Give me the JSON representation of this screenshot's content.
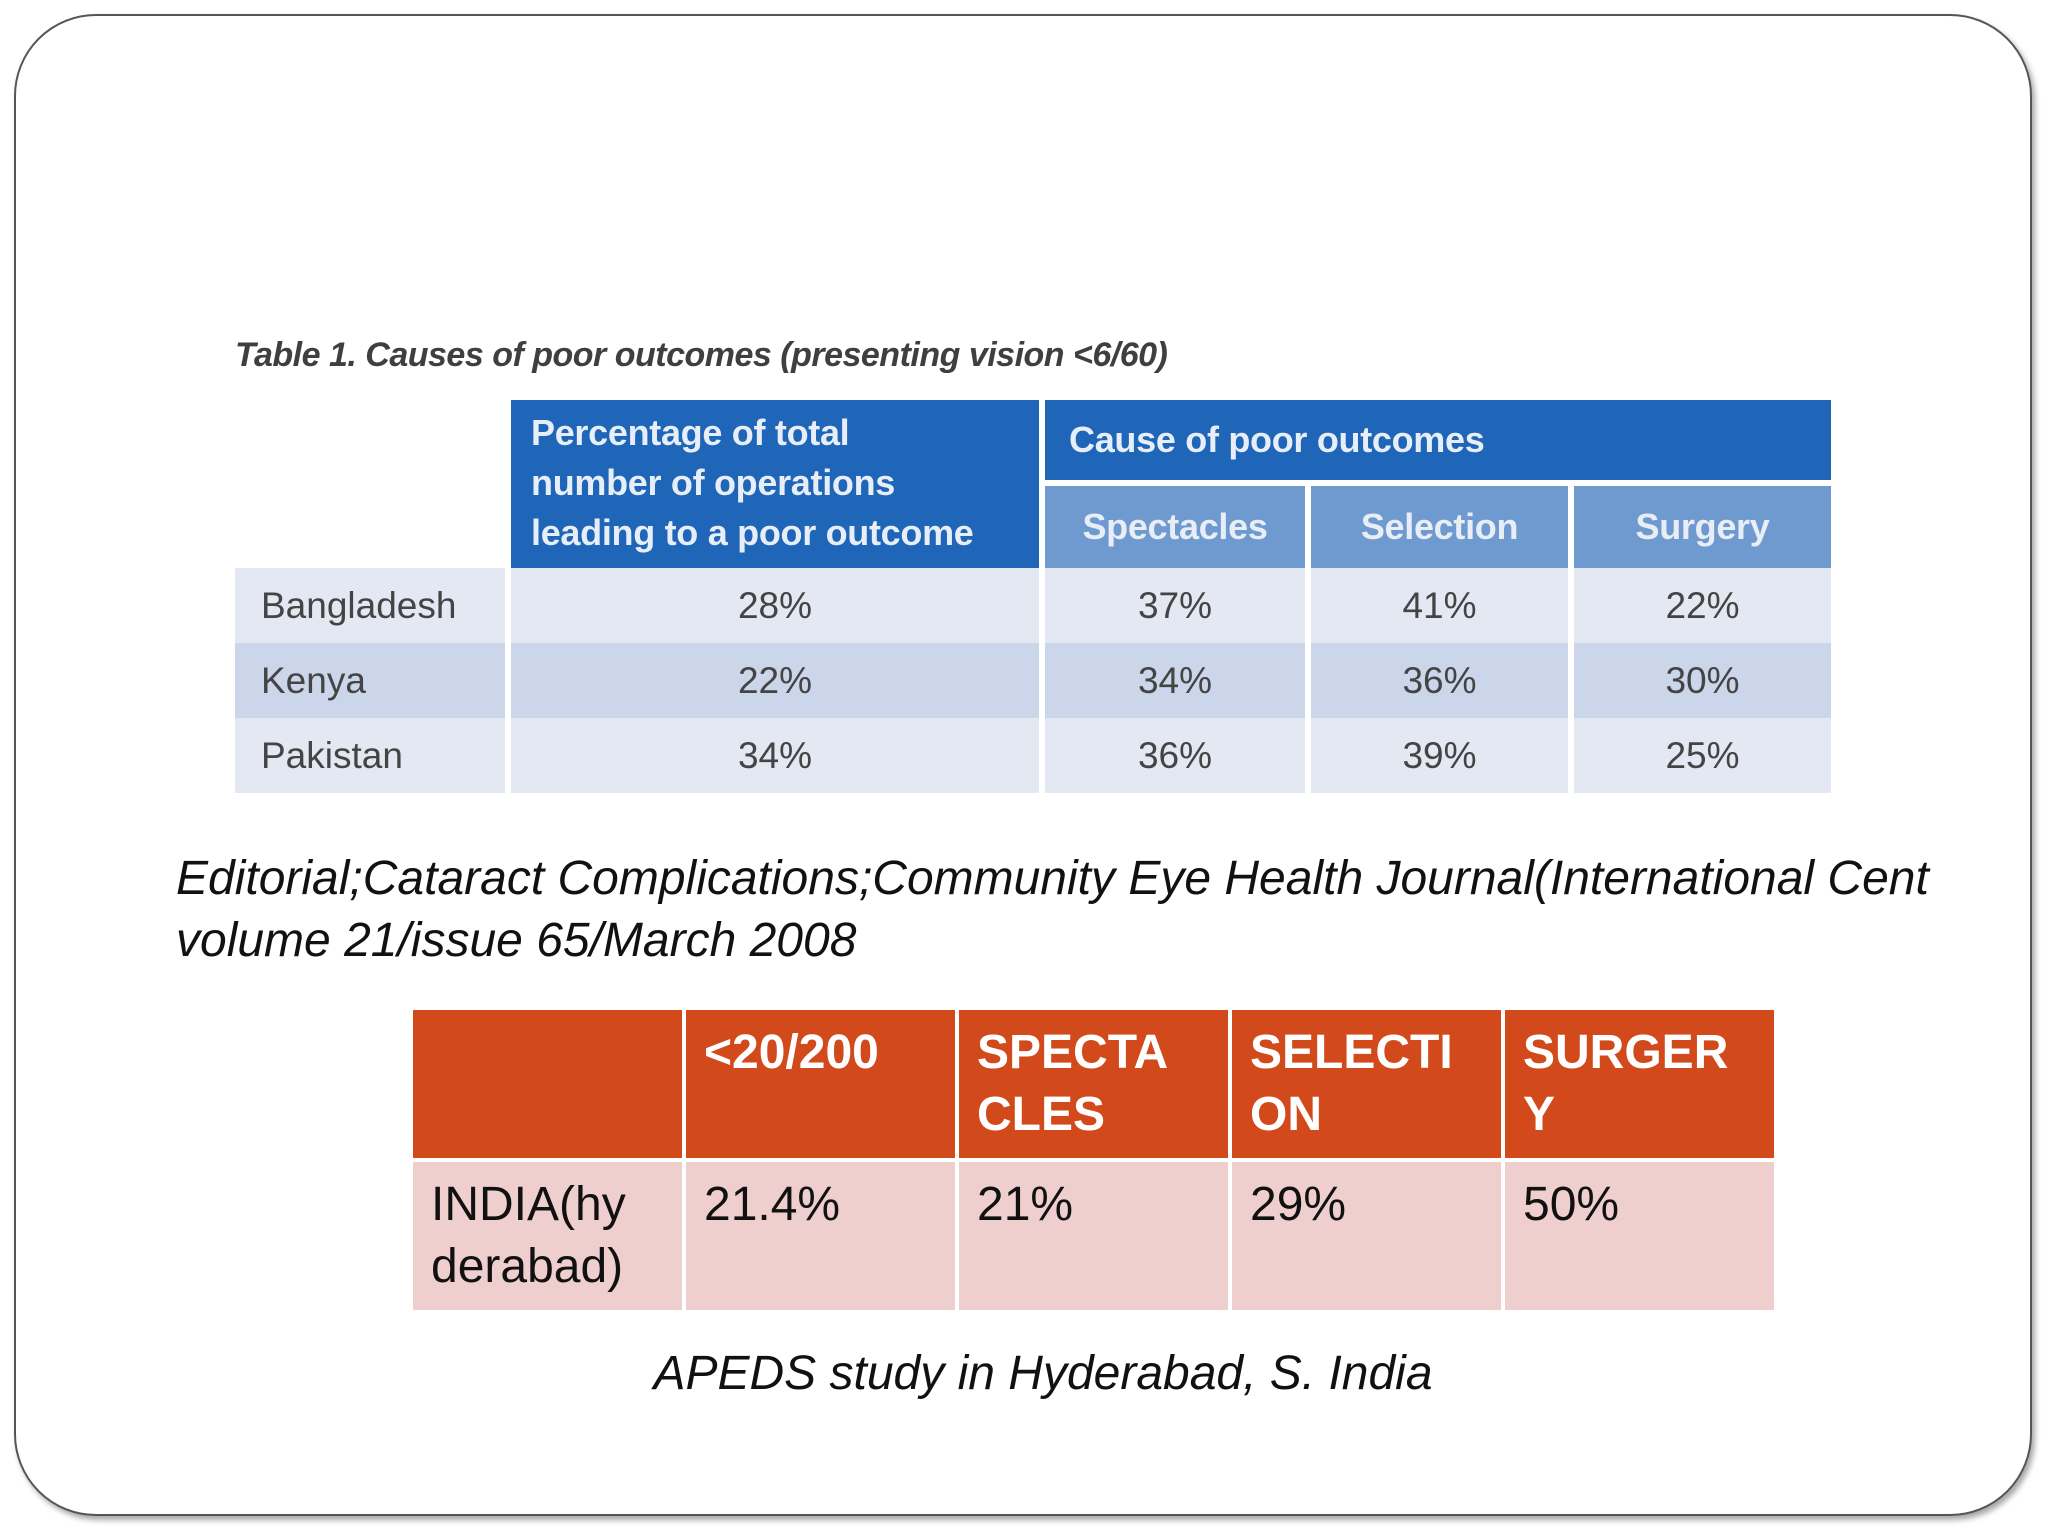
{
  "table1": {
    "caption": "Table 1. Causes of poor outcomes (presenting vision <6/60)",
    "header_main": [
      "Percentage of total",
      "number of operations",
      "leading to a poor outcome"
    ],
    "header_cause": "Cause of poor outcomes",
    "subheaders": [
      "Spectacles",
      "Selection",
      "Surgery"
    ],
    "rows": [
      {
        "country": "Bangladesh",
        "percent": "28%",
        "spectacles": "37%",
        "selection": "41%",
        "surgery": "22%"
      },
      {
        "country": "Kenya",
        "percent": "22%",
        "spectacles": "34%",
        "selection": "36%",
        "surgery": "30%"
      },
      {
        "country": "Pakistan",
        "percent": "34%",
        "spectacles": "36%",
        "selection": "39%",
        "surgery": "25%"
      }
    ]
  },
  "citation": {
    "line1": "Editorial;Cataract Complications;Community Eye Health Journal(International Cent",
    "line2": "volume 21/issue 65/March 2008"
  },
  "table2": {
    "headers": [
      "",
      "<20/200",
      "SPECTA CLES",
      "SELECTI ON",
      "SURGER Y"
    ],
    "header_lines": [
      [
        "",
        ""
      ],
      [
        "<20/200",
        ""
      ],
      [
        "SPECTA",
        "CLES"
      ],
      [
        "SELECTI",
        "ON"
      ],
      [
        "SURGER",
        "Y"
      ]
    ],
    "row_lines": [
      [
        "INDIA(hy",
        "derabad)"
      ],
      [
        "21.4%",
        ""
      ],
      [
        "21%",
        ""
      ],
      [
        "29%",
        ""
      ],
      [
        "50%",
        ""
      ]
    ],
    "row": [
      "INDIA(hyderabad)",
      "21.4%",
      "21%",
      "29%",
      "50%"
    ]
  },
  "apeds_caption": "APEDS study in Hyderabad, S. India",
  "colors": {
    "t1_header": "#1f66b8",
    "t1_subheader": "#6f9ad0",
    "t1_row_light": "#e4e8f3",
    "t1_row_dark": "#ccd6ea",
    "t2_header": "#d24a1b",
    "t2_body": "#efcfcd"
  }
}
